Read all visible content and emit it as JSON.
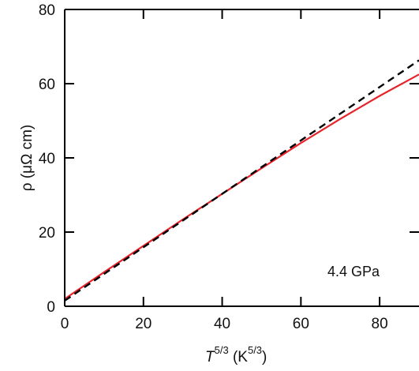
{
  "chart_data": {
    "type": "line",
    "title": "",
    "xlabel": {
      "base": "T",
      "base_sup": "5/3",
      "unit_open": " (K",
      "unit_sup": "5/3",
      "unit_close": ")"
    },
    "ylabel": "ρ (μΩ cm)",
    "xlim": [
      0,
      90
    ],
    "ylim": [
      0,
      80
    ],
    "x_ticks": [
      0,
      20,
      40,
      60,
      80
    ],
    "y_ticks": [
      0,
      20,
      40,
      60,
      80
    ],
    "grid": false,
    "annotation": "4.4 GPa",
    "series": [
      {
        "style": "solid",
        "color": "#e8232a",
        "x": [
          0,
          10,
          20,
          30,
          40,
          50,
          60,
          70,
          80,
          90
        ],
        "y": [
          2.0,
          9.2,
          16.3,
          23.4,
          30.3,
          37.2,
          44.0,
          50.5,
          56.7,
          62.5
        ]
      },
      {
        "style": "dashed",
        "color": "#000000",
        "x": [
          0,
          90
        ],
        "y": [
          1.5,
          66.3
        ]
      }
    ]
  }
}
